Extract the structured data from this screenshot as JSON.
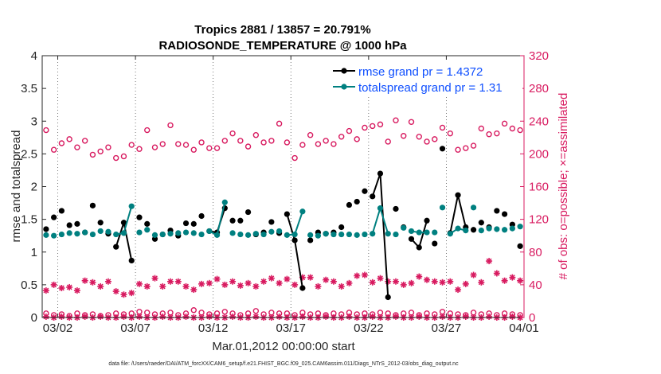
{
  "chart_data": {
    "type": "line",
    "title": "Tropics 2881 / 13857 = 20.791%",
    "subtitle": "RADIOSONDE_TEMPERATURE @ 1000 hPa",
    "xlabel": "Mar.01,2012 00:00:00 start",
    "ylabel": "rmse and totalspread",
    "ylabel_right": "# of obs: o=possible; ×=assimilated",
    "footer": "data file: /Users/raeder/DAI/ATM_forcXX/CAM6_setup/f.e21.FHIST_BGC.f09_025.CAM6assim.011/Diags_NTrS_2012-03/obs_diag_output.nc",
    "xlim": [
      1,
      32
    ],
    "ylim": [
      0,
      4
    ],
    "ylim_right": [
      0,
      320
    ],
    "x_ticks": [
      2,
      7,
      12,
      17,
      22,
      27,
      32
    ],
    "x_tick_labels": [
      "03/02",
      "03/07",
      "03/12",
      "03/17",
      "03/22",
      "03/27",
      "04/01"
    ],
    "y_ticks": [
      "0",
      "0.5",
      "1",
      "1.5",
      "2",
      "2.5",
      "3",
      "3.5",
      "4"
    ],
    "y_ticks_right": [
      "0",
      "40",
      "80",
      "120",
      "160",
      "200",
      "240",
      "280",
      "320"
    ],
    "legend": [
      {
        "name": "rmse grand pr = 1.4372",
        "color": "#000000"
      },
      {
        "name": "totalspread grand pr = 1.31",
        "color": "#008080"
      }
    ],
    "grid": "vertical dotted",
    "x": [
      1.25,
      1.75,
      2.25,
      2.75,
      3.25,
      3.75,
      4.25,
      4.75,
      5.25,
      5.75,
      6.25,
      6.75,
      7.25,
      7.75,
      8.25,
      8.75,
      9.25,
      9.75,
      10.25,
      10.75,
      11.25,
      11.75,
      12.25,
      12.75,
      13.25,
      13.75,
      14.25,
      14.75,
      15.25,
      15.75,
      16.25,
      16.75,
      17.25,
      17.75,
      18.25,
      18.75,
      19.25,
      19.75,
      20.25,
      20.75,
      21.25,
      21.75,
      22.25,
      22.75,
      23.25,
      23.75,
      24.25,
      24.75,
      25.25,
      25.75,
      26.25,
      26.75,
      27.25,
      27.75,
      28.25,
      28.75,
      29.25,
      29.75,
      30.25,
      30.75,
      31.25,
      31.75
    ],
    "series": [
      {
        "name": "rmse",
        "axis": "left",
        "color": "#000000",
        "connected": [
          [
            5.75,
            6.25,
            6.75
          ],
          [
            11.75,
            12.25,
            12.75
          ],
          [
            16.75,
            17.25,
            17.75
          ],
          [
            22.25,
            22.75,
            23.25
          ],
          [
            24.75,
            25.25,
            25.75
          ],
          [
            27.25,
            27.75,
            28.25
          ]
        ],
        "values": [
          1.35,
          1.53,
          1.63,
          1.41,
          1.43,
          1.3,
          1.71,
          1.45,
          1.28,
          1.08,
          1.45,
          0.87,
          1.53,
          1.43,
          1.2,
          1.27,
          1.33,
          1.25,
          1.44,
          1.43,
          1.55,
          1.32,
          1.3,
          1.67,
          1.48,
          1.48,
          1.61,
          1.27,
          1.3,
          1.46,
          1.29,
          1.58,
          1.18,
          0.45,
          1.18,
          1.3,
          1.28,
          1.3,
          1.38,
          1.72,
          1.77,
          1.93,
          1.85,
          2.2,
          0.31,
          1.66,
          1.38,
          1.2,
          1.07,
          1.48,
          1.13,
          2.58,
          1.29,
          1.87,
          1.38,
          1.34,
          1.45,
          1.38,
          1.63,
          1.58,
          1.42,
          1.09
        ]
      },
      {
        "name": "totalspread",
        "axis": "left",
        "color": "#008080",
        "connected": [
          [
            5.75,
            6.25,
            6.75
          ],
          [
            11.75,
            12.25,
            12.75
          ],
          [
            16.75,
            17.25,
            17.75
          ],
          [
            22.25,
            22.75,
            23.25
          ],
          [
            24.75,
            25.25,
            25.75
          ],
          [
            27.25,
            27.75,
            28.25
          ]
        ],
        "values": [
          1.26,
          1.25,
          1.27,
          1.29,
          1.28,
          1.3,
          1.27,
          1.32,
          1.31,
          1.27,
          1.29,
          1.7,
          1.3,
          1.34,
          1.26,
          1.27,
          1.28,
          1.29,
          1.3,
          1.29,
          1.27,
          1.32,
          1.26,
          1.76,
          1.29,
          1.27,
          1.26,
          1.28,
          1.27,
          1.31,
          1.32,
          1.26,
          1.27,
          1.62,
          1.26,
          1.25,
          1.28,
          1.27,
          1.27,
          1.27,
          1.26,
          1.27,
          1.28,
          1.67,
          1.28,
          1.27,
          1.37,
          1.32,
          1.3,
          1.3,
          1.3,
          1.68,
          1.28,
          1.36,
          1.33,
          1.68,
          1.33,
          1.36,
          1.35,
          1.34,
          1.36,
          1.39
        ]
      },
      {
        "name": "obs possible",
        "axis": "right",
        "marker": "o",
        "color": "#d81b60",
        "values": [
          229,
          205,
          213,
          218,
          208,
          216,
          199,
          203,
          208,
          195,
          197,
          211,
          206,
          229,
          208,
          212,
          235,
          212,
          211,
          205,
          214,
          207,
          207,
          216,
          225,
          216,
          209,
          223,
          214,
          216,
          237,
          214,
          195,
          211,
          223,
          212,
          216,
          212,
          221,
          228,
          218,
          232,
          234,
          236,
          215,
          241,
          222,
          239,
          221,
          215,
          218,
          232,
          225,
          205,
          207,
          210,
          231,
          224,
          225,
          237,
          231,
          229
        ]
      },
      {
        "name": "obs assimilated",
        "axis": "right",
        "marker": "*",
        "color": "#d81b60",
        "values": [
          33,
          40,
          36,
          37,
          33,
          45,
          43,
          38,
          44,
          32,
          28,
          30,
          41,
          38,
          48,
          38,
          44,
          44,
          38,
          34,
          41,
          42,
          47,
          40,
          44,
          39,
          42,
          38,
          44,
          48,
          42,
          47,
          40,
          49,
          49,
          38,
          46,
          44,
          38,
          42,
          51,
          52,
          43,
          48,
          44,
          44,
          40,
          42,
          50,
          46,
          44,
          43,
          44,
          34,
          41,
          52,
          43,
          69,
          54,
          45,
          49,
          45
        ]
      },
      {
        "name": "obs possible (bottom)",
        "axis": "right",
        "marker": "o",
        "color": "#d81b60",
        "values": [
          5,
          3,
          4,
          2,
          5,
          3,
          4,
          2,
          3,
          5,
          4,
          5,
          7,
          6,
          4,
          5,
          6,
          3,
          5,
          9,
          6,
          4,
          5,
          7,
          5,
          3,
          5,
          8,
          4,
          6,
          5,
          5,
          3,
          6,
          4,
          5,
          3,
          5,
          4,
          6,
          4,
          5,
          4,
          6,
          5,
          3,
          5,
          6,
          3,
          5,
          4,
          7,
          5,
          4,
          3,
          6,
          4,
          5,
          3,
          5,
          4,
          3
        ]
      },
      {
        "name": "obs assimilated (bottom)",
        "axis": "right",
        "marker": "*",
        "color": "#d81b60",
        "values": [
          1,
          0,
          1,
          0,
          0,
          1,
          0,
          1,
          0,
          0,
          1,
          0,
          1,
          0,
          0,
          1,
          0,
          0,
          1,
          0,
          0,
          1,
          0,
          0,
          1,
          0,
          0,
          1,
          0,
          0,
          1,
          0,
          0,
          1,
          0,
          0,
          1,
          0,
          0,
          1,
          0,
          0,
          1,
          0,
          0,
          1,
          0,
          0,
          1,
          0,
          0,
          1,
          0,
          0,
          1,
          0,
          0,
          1,
          0,
          0,
          1,
          0
        ]
      }
    ]
  },
  "colors": {
    "axis": "#262626",
    "right_axis": "#d81b60",
    "legend_text": "#0f4fff"
  }
}
